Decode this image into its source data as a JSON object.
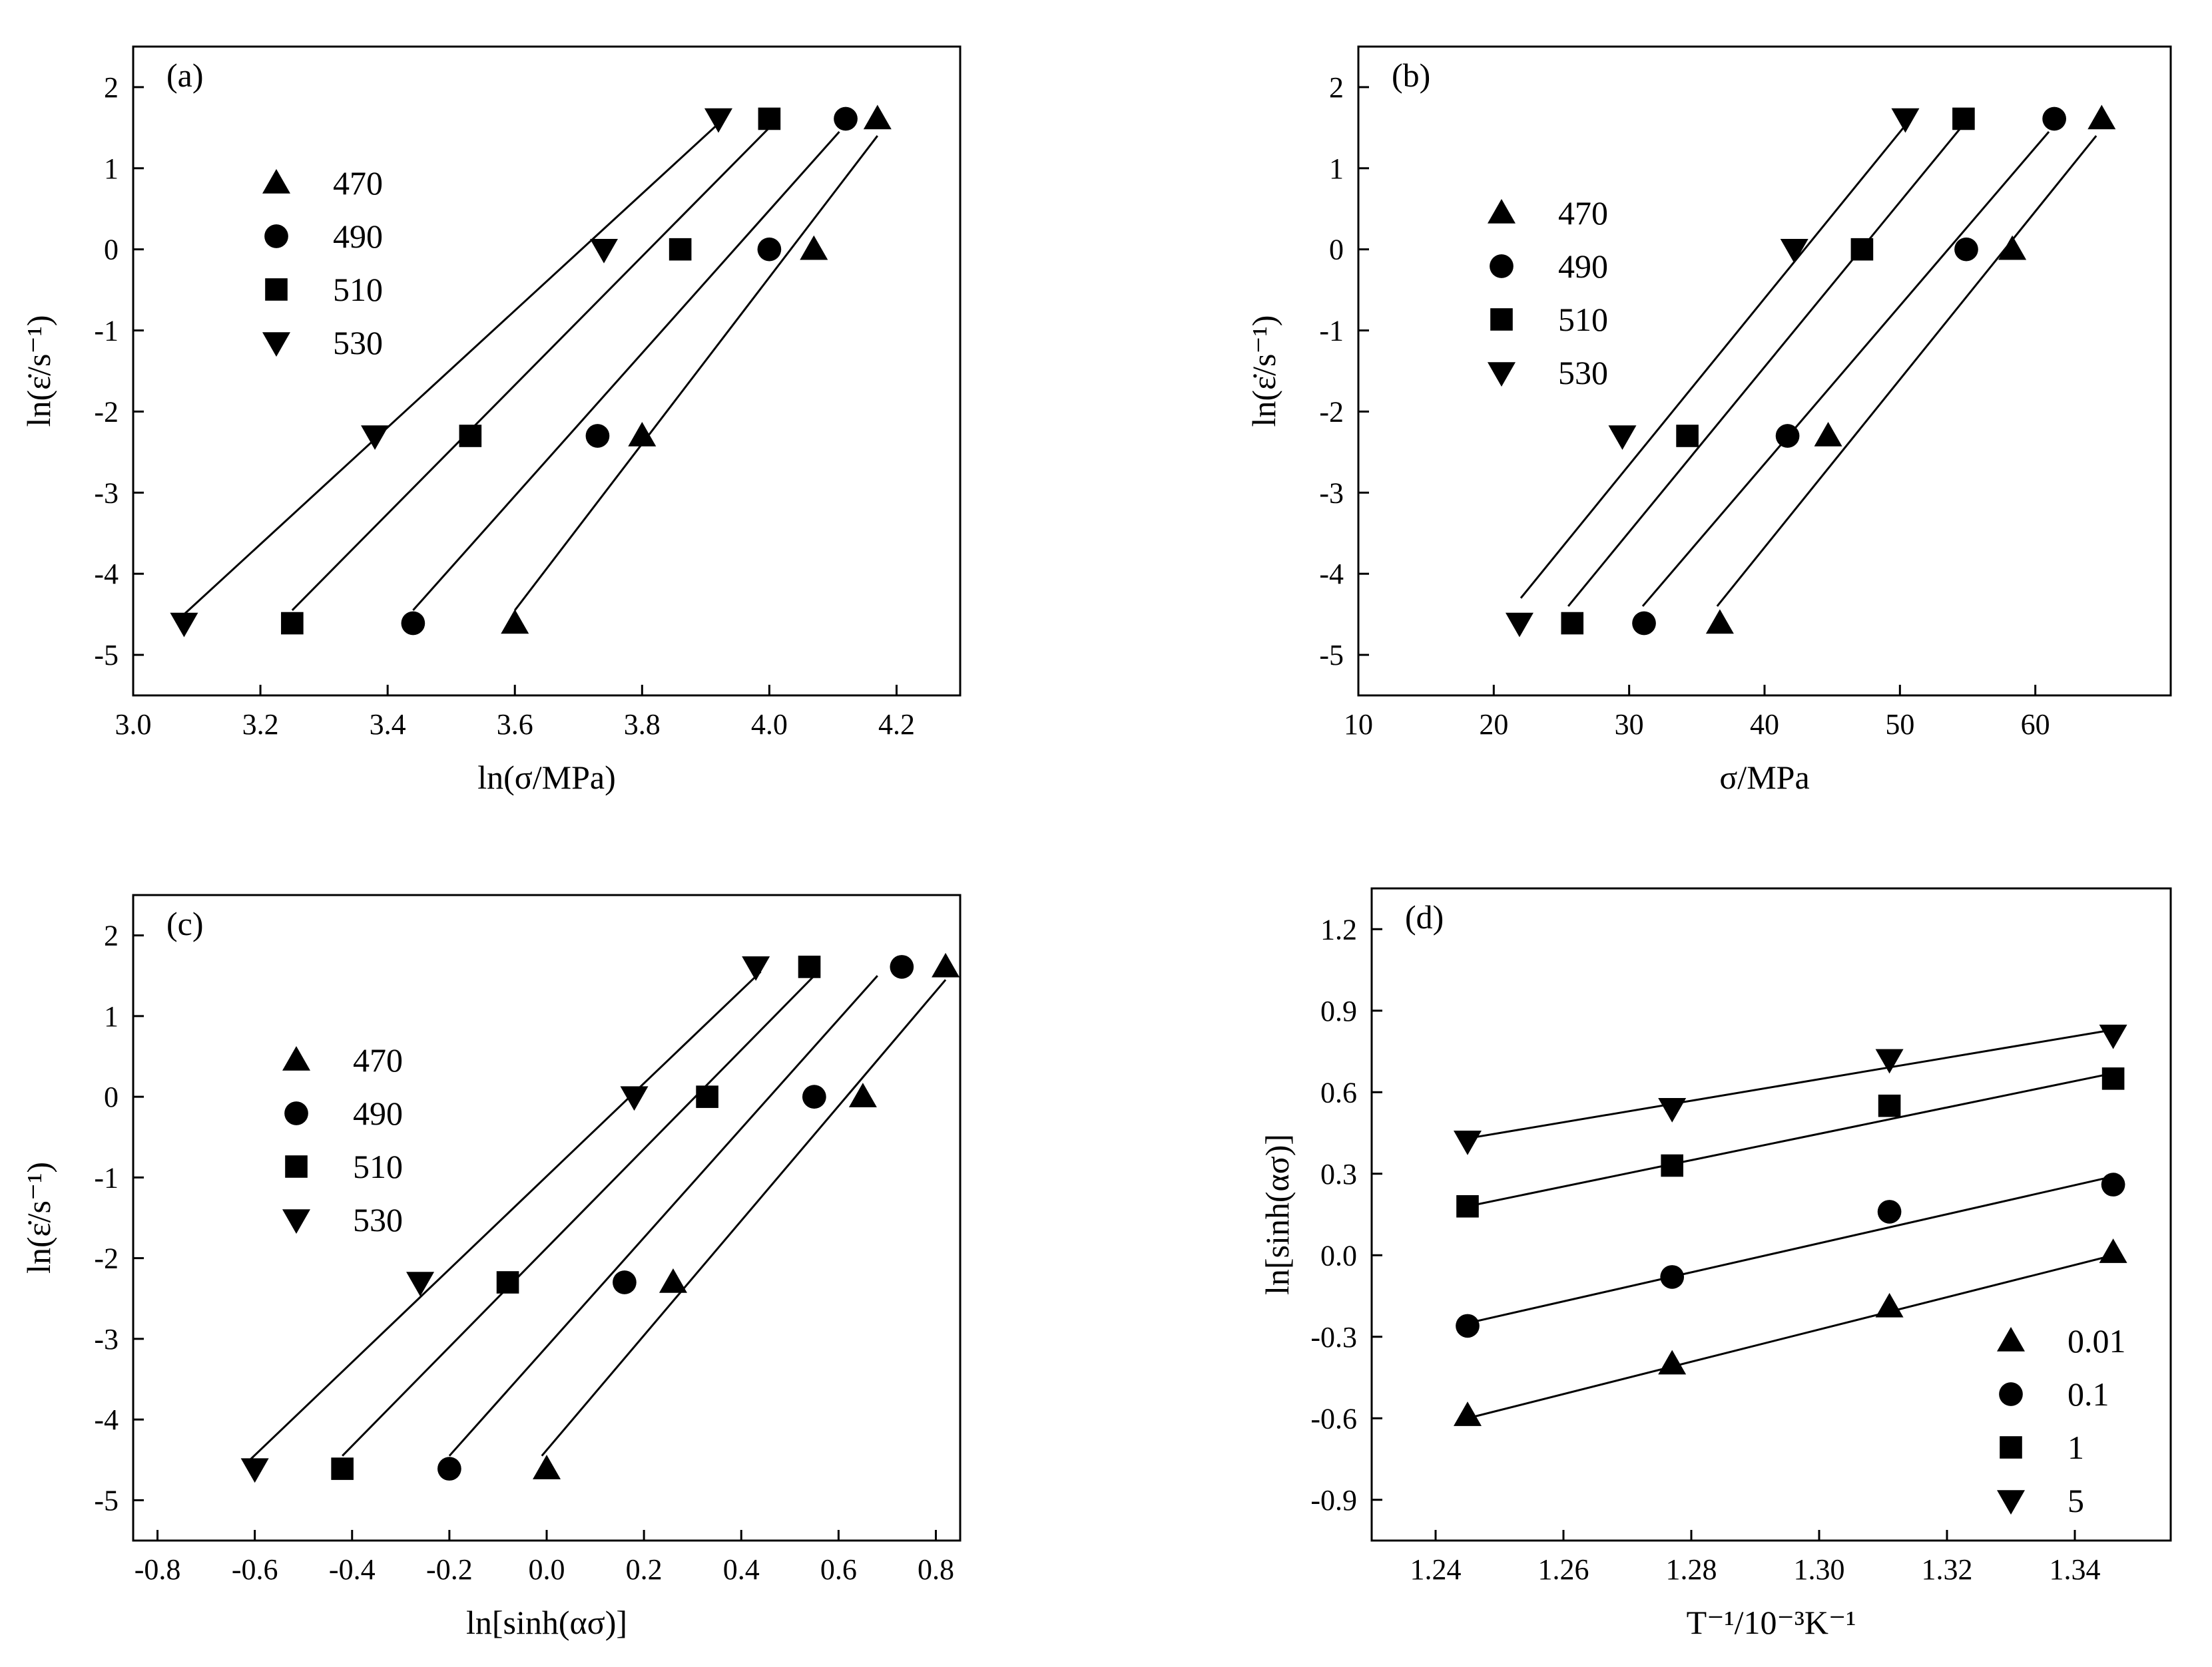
{
  "chart_data": [
    {
      "type": "scatter",
      "panel_label": "(a)",
      "xlabel": "ln(σ/MPa)",
      "ylabel": "ln(ε̇/s⁻¹)",
      "xlim": [
        3.0,
        4.3
      ],
      "ylim": [
        -5.5,
        2.5
      ],
      "xticks": [
        "3.0",
        "3.2",
        "3.4",
        "3.6",
        "3.8",
        "4.0",
        "4.2"
      ],
      "yticks": [
        "-5",
        "-4",
        "-3",
        "-2",
        "-1",
        "0",
        "1",
        "2"
      ],
      "legend_position": "upper-left",
      "series": [
        {
          "name": "470",
          "marker": "triangle-up",
          "points": [
            [
              3.6,
              -4.61
            ],
            [
              3.8,
              -2.3
            ],
            [
              4.07,
              0.0
            ],
            [
              4.17,
              1.61
            ]
          ],
          "fit": [
            [
              3.6,
              -4.45
            ],
            [
              4.17,
              1.4
            ]
          ]
        },
        {
          "name": "490",
          "marker": "circle",
          "points": [
            [
              3.44,
              -4.61
            ],
            [
              3.73,
              -2.3
            ],
            [
              4.0,
              0.0
            ],
            [
              4.12,
              1.61
            ]
          ],
          "fit": [
            [
              3.44,
              -4.45
            ],
            [
              4.11,
              1.45
            ]
          ]
        },
        {
          "name": "510",
          "marker": "square",
          "points": [
            [
              3.25,
              -4.61
            ],
            [
              3.53,
              -2.3
            ],
            [
              3.86,
              0.0
            ],
            [
              4.0,
              1.61
            ]
          ],
          "fit": [
            [
              3.25,
              -4.45
            ],
            [
              4.0,
              1.5
            ]
          ]
        },
        {
          "name": "530",
          "marker": "triangle-down",
          "points": [
            [
              3.08,
              -4.61
            ],
            [
              3.38,
              -2.3
            ],
            [
              3.74,
              0.0
            ],
            [
              3.92,
              1.61
            ]
          ],
          "fit": [
            [
              3.08,
              -4.5
            ],
            [
              3.92,
              1.55
            ]
          ]
        }
      ]
    },
    {
      "type": "scatter",
      "panel_label": "(b)",
      "xlabel": "σ/MPa",
      "ylabel": "ln(ε̇/s⁻¹)",
      "xlim": [
        10,
        70
      ],
      "ylim": [
        -5.5,
        2.5
      ],
      "xticks": [
        "10",
        "20",
        "30",
        "40",
        "50",
        "60"
      ],
      "yticks": [
        "-5",
        "-4",
        "-3",
        "-2",
        "-1",
        "0",
        "1",
        "2"
      ],
      "legend_position": "upper-left",
      "series": [
        {
          "name": "470",
          "marker": "triangle-up",
          "points": [
            [
              36.7,
              -4.61
            ],
            [
              44.7,
              -2.3
            ],
            [
              58.3,
              0.0
            ],
            [
              64.9,
              1.61
            ]
          ],
          "fit": [
            [
              36.5,
              -4.4
            ],
            [
              64.5,
              1.4
            ]
          ]
        },
        {
          "name": "490",
          "marker": "circle",
          "points": [
            [
              31.1,
              -4.61
            ],
            [
              41.7,
              -2.3
            ],
            [
              54.9,
              0.0
            ],
            [
              61.4,
              1.61
            ]
          ],
          "fit": [
            [
              31.0,
              -4.4
            ],
            [
              61.0,
              1.45
            ]
          ]
        },
        {
          "name": "510",
          "marker": "square",
          "points": [
            [
              25.8,
              -4.61
            ],
            [
              34.3,
              -2.3
            ],
            [
              47.2,
              0.0
            ],
            [
              54.7,
              1.61
            ]
          ],
          "fit": [
            [
              25.5,
              -4.4
            ],
            [
              54.5,
              1.5
            ]
          ]
        },
        {
          "name": "530",
          "marker": "triangle-down",
          "points": [
            [
              21.9,
              -4.61
            ],
            [
              29.5,
              -2.3
            ],
            [
              42.2,
              0.0
            ],
            [
              50.4,
              1.61
            ]
          ],
          "fit": [
            [
              22.0,
              -4.3
            ],
            [
              50.5,
              1.55
            ]
          ]
        }
      ]
    },
    {
      "type": "scatter",
      "panel_label": "(c)",
      "xlabel": "ln[sinh(ασ)]",
      "ylabel": "ln(ε̇/s⁻¹)",
      "xlim": [
        -0.85,
        0.85
      ],
      "ylim": [
        -5.5,
        2.5
      ],
      "xticks": [
        "-0.8",
        "-0.6",
        "-0.4",
        "-0.2",
        "0.0",
        "0.2",
        "0.4",
        "0.6",
        "0.8"
      ],
      "yticks": [
        "-5",
        "-4",
        "-3",
        "-2",
        "-1",
        "0",
        "1",
        "2"
      ],
      "legend_position": "upper-left",
      "series": [
        {
          "name": "470",
          "marker": "triangle-up",
          "points": [
            [
              0.0,
              -4.61
            ],
            [
              0.26,
              -2.3
            ],
            [
              0.65,
              0.0
            ],
            [
              0.82,
              1.61
            ]
          ],
          "fit": [
            [
              -0.01,
              -4.45
            ],
            [
              0.82,
              1.45
            ]
          ]
        },
        {
          "name": "490",
          "marker": "circle",
          "points": [
            [
              -0.2,
              -4.61
            ],
            [
              0.16,
              -2.3
            ],
            [
              0.55,
              0.0
            ],
            [
              0.73,
              1.61
            ]
          ],
          "fit": [
            [
              -0.2,
              -4.45
            ],
            [
              0.68,
              1.5
            ]
          ]
        },
        {
          "name": "510",
          "marker": "square",
          "points": [
            [
              -0.42,
              -4.61
            ],
            [
              -0.08,
              -2.3
            ],
            [
              0.33,
              0.0
            ],
            [
              0.54,
              1.61
            ]
          ],
          "fit": [
            [
              -0.42,
              -4.45
            ],
            [
              0.55,
              1.5
            ]
          ]
        },
        {
          "name": "530",
          "marker": "triangle-down",
          "points": [
            [
              -0.6,
              -4.61
            ],
            [
              -0.26,
              -2.3
            ],
            [
              0.18,
              0.0
            ],
            [
              0.43,
              1.61
            ]
          ],
          "fit": [
            [
              -0.61,
              -4.5
            ],
            [
              0.44,
              1.55
            ]
          ]
        }
      ]
    },
    {
      "type": "scatter",
      "panel_label": "(d)",
      "xlabel": "T⁻¹/10⁻³K⁻¹",
      "ylabel": "ln[sinh(ασ)]",
      "xlim": [
        1.23,
        1.355
      ],
      "ylim": [
        -1.05,
        1.35
      ],
      "xticks": [
        "1.24",
        "1.26",
        "1.28",
        "1.30",
        "1.32",
        "1.34"
      ],
      "yticks": [
        "-0.9",
        "-0.6",
        "-0.3",
        "0.0",
        "0.3",
        "0.6",
        "0.9",
        "1.2"
      ],
      "legend_position": "lower-right",
      "series": [
        {
          "name": "0.01",
          "marker": "triangle-up",
          "points": [
            [
              1.245,
              -0.59
            ],
            [
              1.277,
              -0.4
            ],
            [
              1.311,
              -0.19
            ],
            [
              1.346,
              0.01
            ]
          ],
          "fit": [
            [
              1.245,
              -0.6
            ],
            [
              1.346,
              0.0
            ]
          ]
        },
        {
          "name": "0.1",
          "marker": "circle",
          "points": [
            [
              1.245,
              -0.26
            ],
            [
              1.277,
              -0.08
            ],
            [
              1.311,
              0.16
            ],
            [
              1.346,
              0.26
            ]
          ],
          "fit": [
            [
              1.245,
              -0.25
            ],
            [
              1.346,
              0.29
            ]
          ]
        },
        {
          "name": "1",
          "marker": "square",
          "points": [
            [
              1.245,
              0.18
            ],
            [
              1.277,
              0.33
            ],
            [
              1.311,
              0.55
            ],
            [
              1.346,
              0.65
            ]
          ],
          "fit": [
            [
              1.245,
              0.18
            ],
            [
              1.346,
              0.67
            ]
          ]
        },
        {
          "name": "5",
          "marker": "triangle-down",
          "points": [
            [
              1.245,
              0.42
            ],
            [
              1.277,
              0.54
            ],
            [
              1.311,
              0.72
            ],
            [
              1.346,
              0.81
            ]
          ],
          "fit": [
            [
              1.245,
              0.43
            ],
            [
              1.346,
              0.83
            ]
          ]
        }
      ]
    }
  ]
}
